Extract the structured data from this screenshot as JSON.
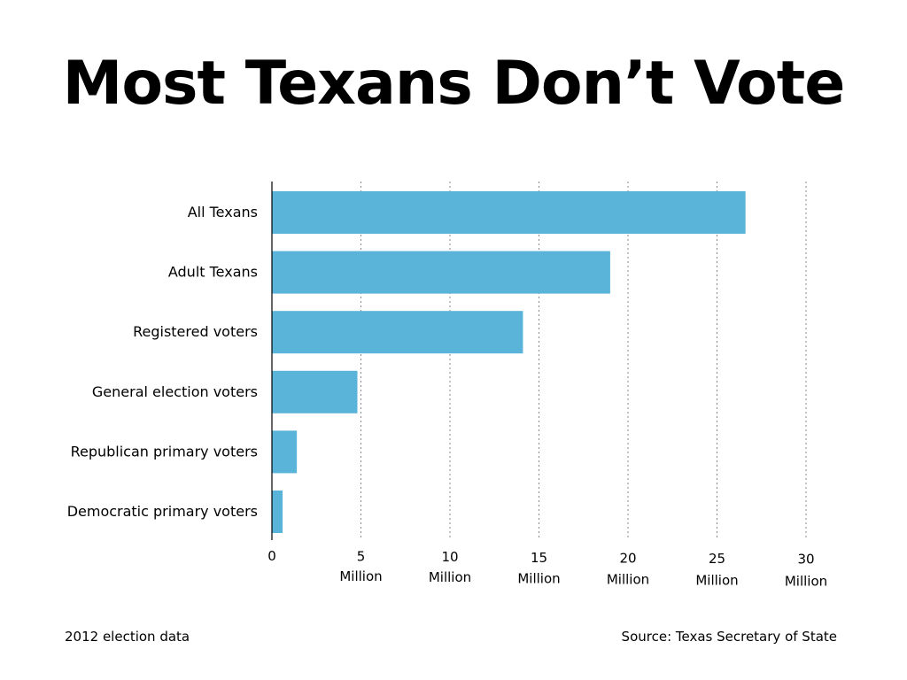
{
  "chart_data": {
    "type": "bar",
    "orientation": "horizontal",
    "title": "Most Texans Don’t Vote",
    "categories": [
      "All Texans",
      "Adult Texans",
      "Registered voters",
      "General election voters",
      "Republican primary voters",
      "Democratic primary voters"
    ],
    "values": [
      26.6,
      19.0,
      14.1,
      4.8,
      1.4,
      0.6
    ],
    "units": "Million",
    "xlim": [
      0,
      30
    ],
    "x_ticks": [
      {
        "value": 0,
        "label": "0",
        "sublabel": ""
      },
      {
        "value": 5,
        "label": "5",
        "sublabel": "Million"
      },
      {
        "value": 10,
        "label": "10",
        "sublabel": "Million"
      },
      {
        "value": 15,
        "label": "15",
        "sublabel": "Million"
      },
      {
        "value": 20,
        "label": "20",
        "sublabel": "Million"
      },
      {
        "value": 25,
        "label": "25",
        "sublabel": "Million"
      },
      {
        "value": 30,
        "label": "30",
        "sublabel": "Million"
      }
    ],
    "grid": "vertical dotted",
    "bar_color": "#5ab4d9"
  },
  "footer": {
    "note": "2012 election data",
    "source": "Source: Texas Secretary of State"
  }
}
